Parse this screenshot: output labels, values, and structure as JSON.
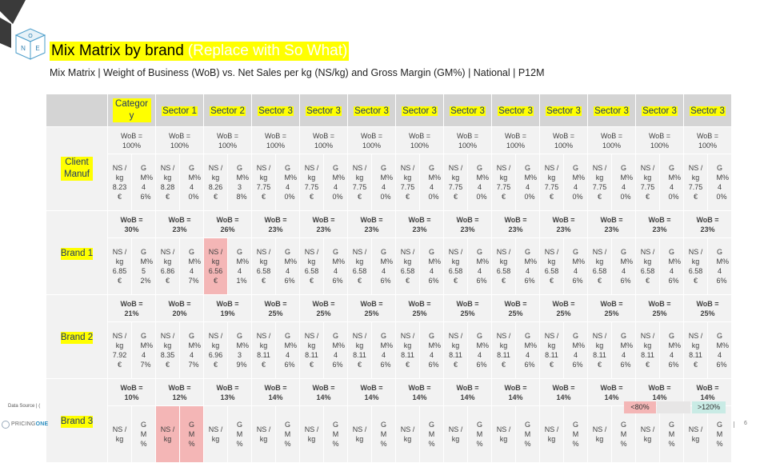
{
  "header": {
    "title": "Mix Matrix by brand",
    "so_what": "(Replace with So What)",
    "subtitle": "Mix Matrix | Weight of Business (WoB) vs. Net Sales per kg (NS/kg) and Gross Margin (GM%) | National | P12M"
  },
  "logo_letters": [
    "O",
    "N",
    "E"
  ],
  "columns": [
    "Category",
    "Sector 1",
    "Sector 2",
    "Sector 3",
    "Sector 3",
    "Sector 3",
    "Sector 3",
    "Sector 3",
    "Sector 3",
    "Sector 3",
    "Sector 3",
    "Sector 3",
    "Sector 3"
  ],
  "rows": [
    {
      "label": "Client Manuf",
      "wob_bold": false,
      "cells": [
        {
          "wob": "WoB = 100%",
          "ns": "NS /kg 8.23€",
          "gm": "GM% 46%"
        },
        {
          "wob": "WoB = 100%",
          "ns": "NS /kg 8.28€",
          "gm": "GM% 40%"
        },
        {
          "wob": "WoB = 100%",
          "ns": "NS /kg 8.26€",
          "gm": "GM% 38%"
        },
        {
          "wob": "WoB = 100%",
          "ns": "NS /kg 7.75€",
          "gm": "GM% 40%"
        },
        {
          "wob": "WoB = 100%",
          "ns": "NS /kg 7.75€",
          "gm": "GM% 40%"
        },
        {
          "wob": "WoB = 100%",
          "ns": "NS /kg 7.75€",
          "gm": "GM% 40%"
        },
        {
          "wob": "WoB = 100%",
          "ns": "NS /kg 7.75€",
          "gm": "GM% 40%"
        },
        {
          "wob": "WoB = 100%",
          "ns": "NS /kg 7.75€",
          "gm": "GM% 40%"
        },
        {
          "wob": "WoB = 100%",
          "ns": "NS /kg 7.75€",
          "gm": "GM% 40%"
        },
        {
          "wob": "WoB = 100%",
          "ns": "NS /kg 7.75€",
          "gm": "GM% 40%"
        },
        {
          "wob": "WoB = 100%",
          "ns": "NS /kg 7.75€",
          "gm": "GM% 40%"
        },
        {
          "wob": "WoB = 100%",
          "ns": "NS /kg 7.75€",
          "gm": "GM% 40%"
        },
        {
          "wob": "WoB = 100%",
          "ns": "NS /kg 7.75€",
          "gm": "GM% 40%"
        }
      ]
    },
    {
      "label": "Brand 1",
      "wob_bold": true,
      "cells": [
        {
          "wob": "WoB = 30%",
          "ns": "NS /kg 6.85€",
          "gm": "GM% 52%"
        },
        {
          "wob": "WoB = 23%",
          "ns": "NS /kg 6.86€",
          "gm": "GM% 47%"
        },
        {
          "wob": "WoB = 26%",
          "ns": "NS /kg 6.56€",
          "gm": "GM% 41%",
          "ns_highlight": "low"
        },
        {
          "wob": "WoB = 23%",
          "ns": "NS /kg 6.58€",
          "gm": "GM% 46%"
        },
        {
          "wob": "WoB = 23%",
          "ns": "NS /kg 6.58€",
          "gm": "GM% 46%"
        },
        {
          "wob": "WoB = 23%",
          "ns": "NS /kg 6.58€",
          "gm": "GM% 46%"
        },
        {
          "wob": "WoB = 23%",
          "ns": "NS /kg 6.58€",
          "gm": "GM% 46%"
        },
        {
          "wob": "WoB = 23%",
          "ns": "NS /kg 6.58€",
          "gm": "GM% 46%"
        },
        {
          "wob": "WoB = 23%",
          "ns": "NS /kg 6.58€",
          "gm": "GM% 46%"
        },
        {
          "wob": "WoB = 23%",
          "ns": "NS /kg 6.58€",
          "gm": "GM% 46%"
        },
        {
          "wob": "WoB = 23%",
          "ns": "NS /kg 6.58€",
          "gm": "GM% 46%"
        },
        {
          "wob": "WoB = 23%",
          "ns": "NS /kg 6.58€",
          "gm": "GM% 46%"
        },
        {
          "wob": "WoB = 23%",
          "ns": "NS /kg 6.58€",
          "gm": "GM% 46%"
        }
      ]
    },
    {
      "label": "Brand 2",
      "wob_bold": true,
      "cells": [
        {
          "wob": "WoB = 21%",
          "ns": "NS /kg 7.92€",
          "gm": "GM% 47%"
        },
        {
          "wob": "WoB = 20%",
          "ns": "NS /kg 8.35€",
          "gm": "GM% 47%"
        },
        {
          "wob": "WoB = 19%",
          "ns": "NS /kg 6.96€",
          "gm": "GM% 39%"
        },
        {
          "wob": "WoB = 25%",
          "ns": "NS /kg 8.11€",
          "gm": "GM% 46%"
        },
        {
          "wob": "WoB = 25%",
          "ns": "NS /kg 8.11€",
          "gm": "GM% 46%"
        },
        {
          "wob": "WoB = 25%",
          "ns": "NS /kg 8.11€",
          "gm": "GM% 46%"
        },
        {
          "wob": "WoB = 25%",
          "ns": "NS /kg 8.11€",
          "gm": "GM% 46%"
        },
        {
          "wob": "WoB = 25%",
          "ns": "NS /kg 8.11€",
          "gm": "GM% 46%"
        },
        {
          "wob": "WoB = 25%",
          "ns": "NS /kg 8.11€",
          "gm": "GM% 46%"
        },
        {
          "wob": "WoB = 25%",
          "ns": "NS /kg 8.11€",
          "gm": "GM% 46%"
        },
        {
          "wob": "WoB = 25%",
          "ns": "NS /kg 8.11€",
          "gm": "GM% 46%"
        },
        {
          "wob": "WoB = 25%",
          "ns": "NS /kg 8.11€",
          "gm": "GM% 46%"
        },
        {
          "wob": "WoB = 25%",
          "ns": "NS /kg 8.11€",
          "gm": "GM% 46%"
        }
      ]
    },
    {
      "label": "Brand 3",
      "wob_bold": true,
      "cells": [
        {
          "wob": "WoB = 10%",
          "ns": "NS /kg",
          "gm": "GM %"
        },
        {
          "wob": "WoB = 12%",
          "ns": "NS /kg",
          "gm": "GM %",
          "ns_highlight": "low",
          "gm_highlight": "low"
        },
        {
          "wob": "WoB = 13%",
          "ns": "NS /kg",
          "gm": "GM %"
        },
        {
          "wob": "WoB = 14%",
          "ns": "NS /kg",
          "gm": "GM %"
        },
        {
          "wob": "WoB = 14%",
          "ns": "NS /kg",
          "gm": "GM %"
        },
        {
          "wob": "WoB = 14%",
          "ns": "NS /kg",
          "gm": "GM %"
        },
        {
          "wob": "WoB = 14%",
          "ns": "NS /kg",
          "gm": "GM %"
        },
        {
          "wob": "WoB = 14%",
          "ns": "NS /kg",
          "gm": "GM %"
        },
        {
          "wob": "WoB = 14%",
          "ns": "NS /kg",
          "gm": "GM %"
        },
        {
          "wob": "WoB = 14%",
          "ns": "NS /kg",
          "gm": "GM %"
        },
        {
          "wob": "WoB = 14%",
          "ns": "NS /kg",
          "gm": "GM %"
        },
        {
          "wob": "WoB = 14%",
          "ns": "NS /kg",
          "gm": "GM %"
        },
        {
          "wob": "WoB = 14%",
          "ns": "NS /kg",
          "gm": "GM %"
        }
      ]
    }
  ],
  "legend": {
    "low": "<80%",
    "mid": "",
    "high": ">120%"
  },
  "footer": {
    "data_source": "Data Source | (",
    "brand_prefix": "PRICING",
    "brand_suffix": "ONE",
    "page_number": "6"
  },
  "colors": {
    "highlight_yellow": "#ffff00",
    "low": "#f4b6b6",
    "high": "#c9ebe5",
    "cell_bg": "#f2f2f2",
    "header_bg": "#d4d4d4",
    "header_text": "#1f3864"
  }
}
